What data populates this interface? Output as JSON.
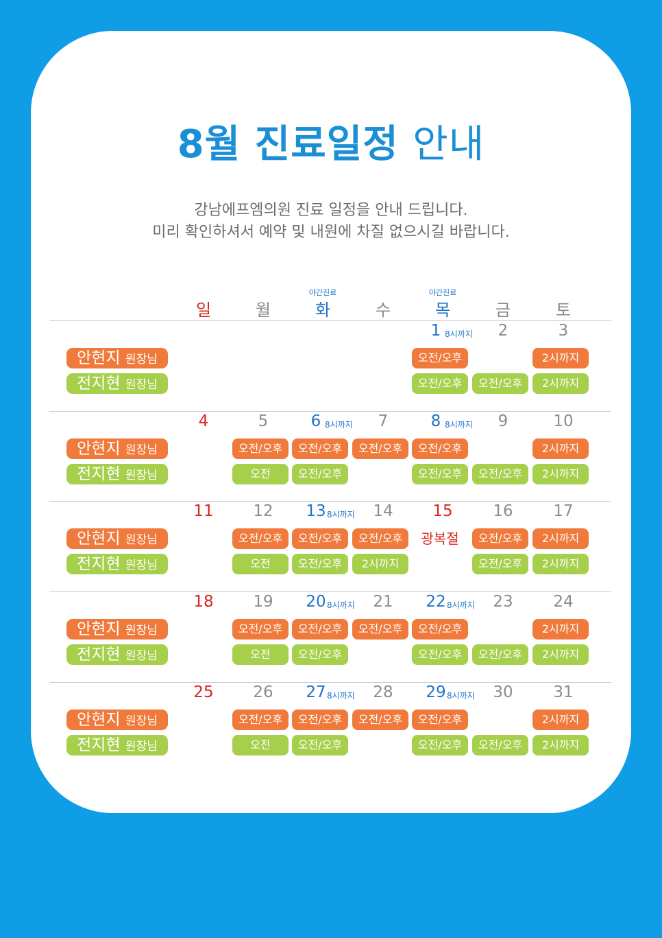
{
  "title": {
    "bold": "8월 진료일정",
    "light": "안내"
  },
  "intro": [
    "강남에프엠의원 진료 일정을 안내 드립니다.",
    "미리 확인하셔서 예약 및 내원에 차질 없으시길 바랍니다."
  ],
  "weekdays": [
    {
      "label": "일",
      "color": "red",
      "night": ""
    },
    {
      "label": "월",
      "color": "gray",
      "night": ""
    },
    {
      "label": "화",
      "color": "blue",
      "night": "야간진료"
    },
    {
      "label": "수",
      "color": "gray",
      "night": ""
    },
    {
      "label": "목",
      "color": "blue",
      "night": "야간진료"
    },
    {
      "label": "금",
      "color": "gray",
      "night": ""
    },
    {
      "label": "토",
      "color": "gray",
      "night": ""
    }
  ],
  "doctors": [
    {
      "name": "안현지",
      "title": "원장님",
      "color": "#f07a3c"
    },
    {
      "name": "전지현",
      "title": "원장님",
      "color": "#a6cf4c"
    }
  ],
  "weeks": [
    {
      "days": [
        {
          "num": "",
          "note": ""
        },
        {
          "num": "",
          "note": ""
        },
        {
          "num": "",
          "note": ""
        },
        {
          "num": "",
          "note": ""
        },
        {
          "num": "1",
          "note": "8시까지"
        },
        {
          "num": "2",
          "note": ""
        },
        {
          "num": "3",
          "note": ""
        }
      ],
      "rows": [
        [
          "",
          "",
          "",
          "",
          "오전/오후",
          "",
          "2시까지"
        ],
        [
          "",
          "",
          "",
          "",
          "오전/오후",
          "오전/오후",
          "2시까지"
        ]
      ]
    },
    {
      "days": [
        {
          "num": "4",
          "note": ""
        },
        {
          "num": "5",
          "note": ""
        },
        {
          "num": "6",
          "note": "8시까지"
        },
        {
          "num": "7",
          "note": ""
        },
        {
          "num": "8",
          "note": "8시까지"
        },
        {
          "num": "9",
          "note": ""
        },
        {
          "num": "10",
          "note": ""
        }
      ],
      "rows": [
        [
          "",
          "오전/오후",
          "오전/오후",
          "오전/오후",
          "오전/오후",
          "",
          "2시까지"
        ],
        [
          "",
          "오전",
          "오전/오후",
          "",
          "오전/오후",
          "오전/오후",
          "2시까지"
        ]
      ]
    },
    {
      "days": [
        {
          "num": "11",
          "note": ""
        },
        {
          "num": "12",
          "note": ""
        },
        {
          "num": "13",
          "note": "8시까지"
        },
        {
          "num": "14",
          "note": ""
        },
        {
          "num": "15",
          "note": "",
          "holiday": "광복절"
        },
        {
          "num": "16",
          "note": ""
        },
        {
          "num": "17",
          "note": ""
        }
      ],
      "rows": [
        [
          "",
          "오전/오후",
          "오전/오후",
          "오전/오후",
          "",
          "오전/오후",
          "2시까지"
        ],
        [
          "",
          "오전",
          "오전/오후",
          "2시까지",
          "",
          "오전/오후",
          "2시까지"
        ]
      ]
    },
    {
      "days": [
        {
          "num": "18",
          "note": ""
        },
        {
          "num": "19",
          "note": ""
        },
        {
          "num": "20",
          "note": "8시까지"
        },
        {
          "num": "21",
          "note": ""
        },
        {
          "num": "22",
          "note": "8시까지"
        },
        {
          "num": "23",
          "note": ""
        },
        {
          "num": "24",
          "note": ""
        }
      ],
      "rows": [
        [
          "",
          "오전/오후",
          "오전/오후",
          "오전/오후",
          "오전/오후",
          "",
          "2시까지"
        ],
        [
          "",
          "오전",
          "오전/오후",
          "",
          "오전/오후",
          "오전/오후",
          "2시까지"
        ]
      ]
    },
    {
      "days": [
        {
          "num": "25",
          "note": ""
        },
        {
          "num": "26",
          "note": ""
        },
        {
          "num": "27",
          "note": "8시까지"
        },
        {
          "num": "28",
          "note": ""
        },
        {
          "num": "29",
          "note": "8시까지"
        },
        {
          "num": "30",
          "note": ""
        },
        {
          "num": "31",
          "note": ""
        }
      ],
      "rows": [
        [
          "",
          "오전/오후",
          "오전/오후",
          "오전/오후",
          "오전/오후",
          "",
          "2시까지"
        ],
        [
          "",
          "오전",
          "오전/오후",
          "",
          "오전/오후",
          "오전/오후",
          "2시까지"
        ]
      ]
    }
  ]
}
